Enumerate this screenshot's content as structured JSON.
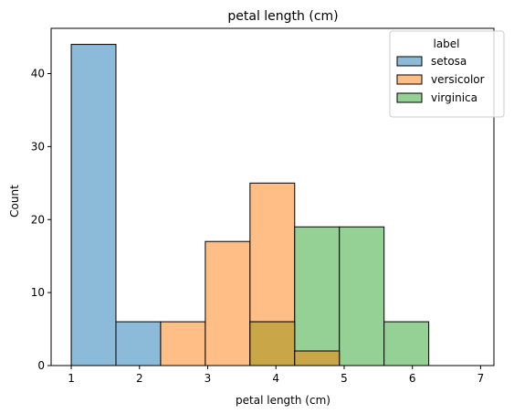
{
  "chart_data": {
    "type": "histogram",
    "title": "petal length (cm)",
    "xlabel": "petal length (cm)",
    "ylabel": "Count",
    "xlim": [
      0.705,
      7.195
    ],
    "ylim": [
      0,
      46.2
    ],
    "xticks": [
      1,
      2,
      3,
      4,
      5,
      6,
      7
    ],
    "yticks": [
      0,
      10,
      20,
      30,
      40
    ],
    "bin_edges": [
      1.0,
      1.655,
      2.31,
      2.965,
      3.62,
      4.275,
      4.93,
      5.585,
      6.24,
      6.895
    ],
    "legend": {
      "title": "label",
      "position": "top-right"
    },
    "series": [
      {
        "name": "setosa",
        "color": "#1f77b4",
        "fill": "#8cbbda",
        "values": [
          44,
          6,
          0,
          0,
          0,
          0,
          0,
          0,
          0
        ]
      },
      {
        "name": "versicolor",
        "color": "#ff7f0e",
        "fill": "#ffbe86",
        "values": [
          0,
          0,
          6,
          17,
          25,
          2,
          0,
          0,
          0
        ]
      },
      {
        "name": "virginica",
        "color": "#2ca02c",
        "fill": "#95d095",
        "values": [
          0,
          0,
          0,
          0,
          6,
          19,
          19,
          6,
          0
        ]
      }
    ],
    "overlaps": [
      {
        "series": [
          "versicolor",
          "virginica"
        ],
        "bin": 4,
        "value": 6,
        "fill": "#c9a648"
      },
      {
        "series": [
          "versicolor",
          "virginica"
        ],
        "bin": 5,
        "value": 2,
        "fill": "#c9a648"
      }
    ]
  }
}
